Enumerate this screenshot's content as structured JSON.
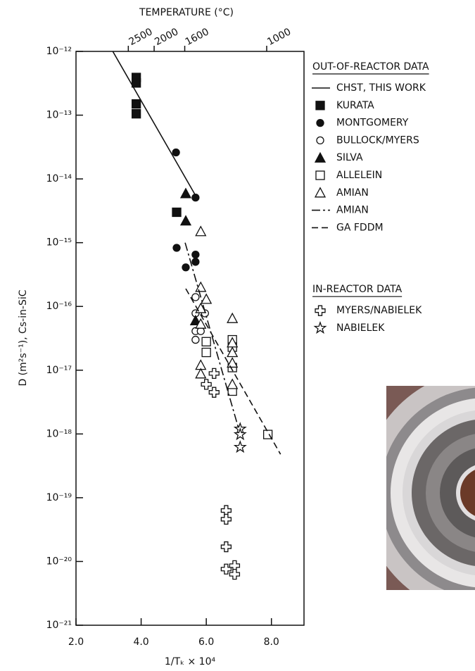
{
  "chart_data": {
    "type": "scatter",
    "title": "TEMPERATURE (°C)",
    "x_label": "1/Tₖ × 10⁴",
    "y_label": "D (m²s⁻¹), Cs-in-SiC",
    "log_y": true,
    "xlim": [
      2.0,
      9.0
    ],
    "xticks": [
      {
        "value": 2,
        "label": "2.0"
      },
      {
        "value": 4,
        "label": "4.0"
      },
      {
        "value": 6,
        "label": "6.0"
      },
      {
        "value": 8,
        "label": "8.0"
      }
    ],
    "ylim": [
      1e-21,
      1e-12
    ],
    "yticks": [
      {
        "value": 1e-12,
        "label": "10⁻¹²"
      },
      {
        "value": 1e-13,
        "label": "10⁻¹³"
      },
      {
        "value": 1e-14,
        "label": "10⁻¹⁴"
      },
      {
        "value": 1e-15,
        "label": "10⁻¹⁵"
      },
      {
        "value": 1e-16,
        "label": "10⁻¹⁶"
      },
      {
        "value": 1e-17,
        "label": "10⁻¹⁷"
      },
      {
        "value": 1e-18,
        "label": "10⁻¹⁸"
      },
      {
        "value": 1e-19,
        "label": "10⁻¹⁹"
      },
      {
        "value": 1e-20,
        "label": "10⁻²⁰"
      },
      {
        "value": 1e-21,
        "label": "10⁻²¹"
      }
    ],
    "x2ticks": [
      2500,
      2000,
      1600,
      1000
    ],
    "legend_titles": [
      "OUT-OF-REACTOR DATA",
      "IN-REACTOR DATA"
    ],
    "series": [
      {
        "name": "CHST, THIS WORK",
        "marker": "line",
        "dash": "solid",
        "color": "#111",
        "x": [
          3.13,
          5.67
        ],
        "values": [
          1e-12,
          5.5e-15
        ]
      },
      {
        "name": "KURATA",
        "marker": "square-filled",
        "color": "#111",
        "x": [
          3.85,
          3.85,
          3.85,
          3.85,
          5.09
        ],
        "values": [
          3.9e-13,
          3.2e-13,
          1.5e-13,
          1.05e-13,
          3e-15
        ]
      },
      {
        "name": "MONTGOMERY",
        "marker": "circle-filled",
        "color": "#111",
        "x": [
          5.07,
          5.67,
          5.09,
          5.37,
          5.67,
          5.67
        ],
        "values": [
          2.6e-14,
          5.1e-15,
          8.3e-16,
          4.1e-16,
          6.5e-16,
          5e-16
        ]
      },
      {
        "name": "BULLOCK/MYERS",
        "marker": "circle-open",
        "color": "#111",
        "x": [
          5.67,
          5.67,
          5.67,
          5.67,
          5.96,
          5.83
        ],
        "values": [
          1.4e-16,
          7.8e-17,
          4.1e-17,
          3e-17,
          7.8e-17,
          4.1e-17
        ]
      },
      {
        "name": "SILVA",
        "marker": "triangle-filled",
        "color": "#111",
        "x": [
          5.37,
          5.37,
          5.67
        ],
        "values": [
          5.9e-15,
          2.2e-15,
          6e-17
        ]
      },
      {
        "name": "ALLELEIN",
        "marker": "square-open",
        "color": "#111",
        "x": [
          6.0,
          6.0,
          6.8,
          6.8,
          6.8,
          6.8,
          7.89
        ],
        "values": [
          2.8e-17,
          1.9e-17,
          3e-17,
          2.3e-17,
          1.1e-17,
          4.7e-18,
          9.8e-19
        ]
      },
      {
        "name": "AMIAN",
        "marker": "triangle-open",
        "color": "#111",
        "x": [
          5.83,
          5.83,
          6.0,
          5.83,
          5.83,
          5.83,
          5.83,
          6.8,
          6.8,
          6.8,
          6.8,
          6.8
        ],
        "values": [
          1.5e-15,
          2e-16,
          1.3e-16,
          9.3e-17,
          5.3e-17,
          1.2e-17,
          8.8e-18,
          6.5e-17,
          2.7e-17,
          1.9e-17,
          1.3e-17,
          6e-18
        ]
      },
      {
        "name": "AMIAN",
        "marker": "line",
        "dash": "dashdot",
        "color": "#111",
        "x": [
          5.35,
          7.04
        ],
        "values": [
          1e-15,
          1e-18
        ]
      },
      {
        "name": "GA FDDM",
        "marker": "line",
        "dash": "dashed",
        "color": "#111",
        "x": [
          5.37,
          8.28
        ],
        "values": [
          1.9e-16,
          4.8e-19
        ]
      },
      {
        "name": "MYERS/NABIELEK",
        "marker": "plus-open",
        "color": "#111",
        "in_reactor": true,
        "x": [
          6.0,
          6.24,
          6.24,
          6.61,
          6.61,
          6.61,
          6.61,
          6.87,
          6.87
        ],
        "values": [
          6e-18,
          8.9e-18,
          4.5e-18,
          6.3e-20,
          4.6e-20,
          1.7e-20,
          7.6e-21,
          8.6e-21,
          6.3e-21
        ]
      },
      {
        "name": "NABIELEK",
        "marker": "star-open",
        "color": "#111",
        "in_reactor": true,
        "x": [
          7.04,
          7.04,
          7.04
        ],
        "values": [
          1.2e-18,
          9.8e-19,
          6.2e-19
        ]
      }
    ]
  }
}
